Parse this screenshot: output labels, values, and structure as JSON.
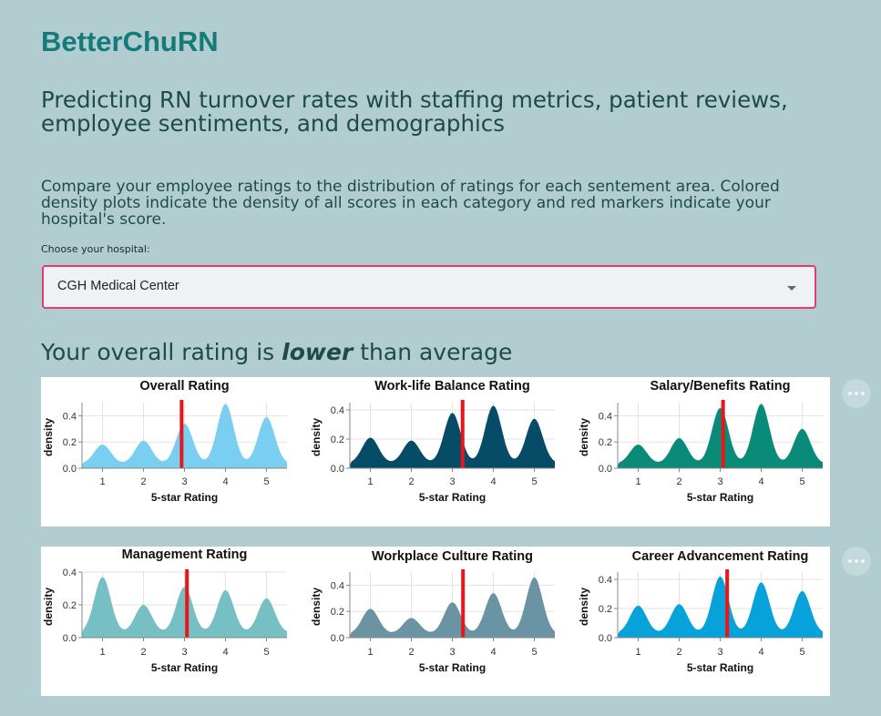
{
  "app": {
    "title": "BetterChuRN",
    "subtitle": "Predicting RN turnover rates with staffing metrics, patient reviews, employee sentiments, and demographics",
    "description": "Compare your employee ratings to the distribution of ratings for each sentement area. Colored density plots indicate the density of all scores in each category and red markers indicate your hospital's score.",
    "select_label": "Choose your hospital:",
    "selected_hospital": "CGH Medical Center",
    "overall_prefix": "Your overall rating is ",
    "overall_emphasis": "lower",
    "overall_suffix": " than average"
  },
  "icons": {
    "row_menu": "more-horizontal-icon",
    "dropdown": "caret-down-icon"
  },
  "colors": {
    "marker": "#e8161b",
    "select_border": "#e43a72",
    "title": "#147a7a"
  },
  "chart_data": [
    {
      "type": "area",
      "title": "Overall Rating",
      "color": "#79cef2",
      "xlabel": "5-star Rating",
      "ylabel": "density",
      "xlim": [
        0.5,
        5.5
      ],
      "ylim": [
        0,
        0.5
      ],
      "yticks": [
        "0.0",
        "0.2",
        "0.4"
      ],
      "xticks": [
        "1",
        "2",
        "3",
        "4",
        "5"
      ],
      "peaks": [
        {
          "x": 1,
          "y": 0.18
        },
        {
          "x": 2,
          "y": 0.21
        },
        {
          "x": 3,
          "y": 0.34
        },
        {
          "x": 4,
          "y": 0.49
        },
        {
          "x": 5,
          "y": 0.39
        }
      ],
      "base": 0.035,
      "marker": 2.93
    },
    {
      "type": "area",
      "title": "Work-life Balance Rating",
      "color": "#064c67",
      "xlabel": "5-star Rating",
      "ylabel": "density",
      "xlim": [
        0.5,
        5.5
      ],
      "ylim": [
        0,
        0.45
      ],
      "yticks": [
        "0.0",
        "0.2",
        "0.4"
      ],
      "xticks": [
        "1",
        "2",
        "3",
        "4",
        "5"
      ],
      "peaks": [
        {
          "x": 1,
          "y": 0.21
        },
        {
          "x": 2,
          "y": 0.19
        },
        {
          "x": 3,
          "y": 0.38
        },
        {
          "x": 4,
          "y": 0.43
        },
        {
          "x": 5,
          "y": 0.34
        }
      ],
      "base": 0.035,
      "marker": 3.25
    },
    {
      "type": "area",
      "title": "Salary/Benefits Rating",
      "color": "#0a8a79",
      "xlabel": "5-star Rating",
      "ylabel": "density",
      "xlim": [
        0.5,
        5.5
      ],
      "ylim": [
        0,
        0.5
      ],
      "yticks": [
        "0.0",
        "0.2",
        "0.4"
      ],
      "xticks": [
        "1",
        "2",
        "3",
        "4",
        "5"
      ],
      "peaks": [
        {
          "x": 1,
          "y": 0.18
        },
        {
          "x": 2,
          "y": 0.23
        },
        {
          "x": 3,
          "y": 0.46
        },
        {
          "x": 4,
          "y": 0.49
        },
        {
          "x": 5,
          "y": 0.3
        }
      ],
      "base": 0.035,
      "marker": 3.07
    },
    {
      "type": "area",
      "title": "Management Rating",
      "color": "#76bfc2",
      "xlabel": "5-star Rating",
      "ylabel": "density",
      "xlim": [
        0.5,
        5.5
      ],
      "ylim": [
        0,
        0.4
      ],
      "yticks": [
        "0.0",
        "0.2",
        "0.4"
      ],
      "xticks": [
        "1",
        "2",
        "3",
        "4",
        "5"
      ],
      "peaks": [
        {
          "x": 1,
          "y": 0.37
        },
        {
          "x": 2,
          "y": 0.2
        },
        {
          "x": 3,
          "y": 0.31
        },
        {
          "x": 4,
          "y": 0.29
        },
        {
          "x": 5,
          "y": 0.24
        }
      ],
      "base": 0.03,
      "marker": 3.06
    },
    {
      "type": "area",
      "title": "Workplace Culture Rating",
      "color": "#6a93a4",
      "xlabel": "5-star Rating",
      "ylabel": "density",
      "xlim": [
        0.5,
        5.5
      ],
      "ylim": [
        0,
        0.5
      ],
      "yticks": [
        "0.0",
        "0.2",
        "0.4"
      ],
      "xticks": [
        "1",
        "2",
        "3",
        "4",
        "5"
      ],
      "peaks": [
        {
          "x": 1,
          "y": 0.22
        },
        {
          "x": 2,
          "y": 0.15
        },
        {
          "x": 3,
          "y": 0.27
        },
        {
          "x": 4,
          "y": 0.34
        },
        {
          "x": 5,
          "y": 0.46
        }
      ],
      "base": 0.03,
      "marker": 3.26
    },
    {
      "type": "area",
      "title": "Career Advancement Rating",
      "color": "#06a2d9",
      "xlabel": "5-star Rating",
      "ylabel": "density",
      "xlim": [
        0.5,
        5.5
      ],
      "ylim": [
        0,
        0.45
      ],
      "yticks": [
        "0.0",
        "0.2",
        "0.4"
      ],
      "xticks": [
        "1",
        "2",
        "3",
        "4",
        "5"
      ],
      "peaks": [
        {
          "x": 1,
          "y": 0.22
        },
        {
          "x": 2,
          "y": 0.23
        },
        {
          "x": 3,
          "y": 0.42
        },
        {
          "x": 4,
          "y": 0.38
        },
        {
          "x": 5,
          "y": 0.32
        }
      ],
      "base": 0.03,
      "marker": 3.17
    }
  ]
}
